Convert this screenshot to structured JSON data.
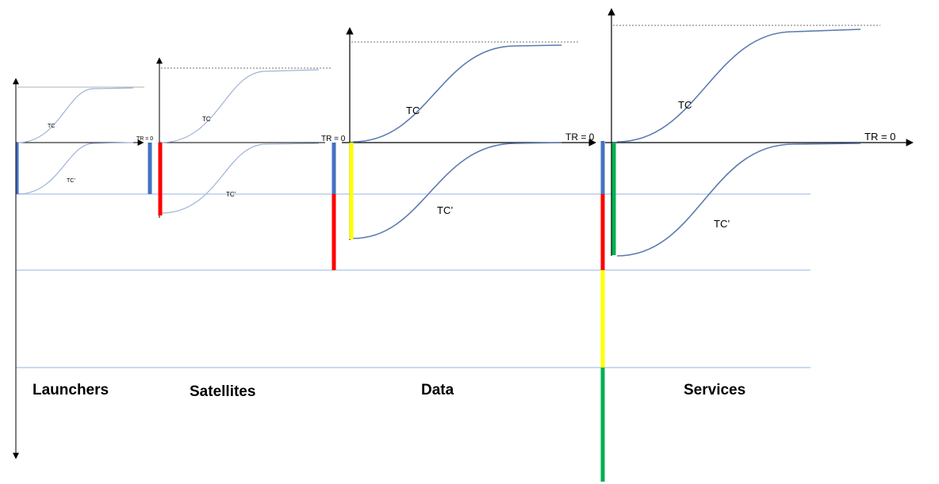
{
  "categories": {
    "launchers": "Launchers",
    "satellites": "Satellites",
    "data": "Data",
    "services": "Services"
  },
  "labels": {
    "tc": "TC",
    "tc_prime": "TC’",
    "tr0": "TR = 0",
    "tr0_small": "TR = 0"
  },
  "colors": {
    "blue": "#4472c4",
    "red": "#ff0000",
    "yellow": "#ffff00",
    "green": "#00b050",
    "guide": "#a9c4e8",
    "curve_dark": "#5b7bb0",
    "curve_light": "#9fb3d6",
    "axis": "#000000"
  }
}
